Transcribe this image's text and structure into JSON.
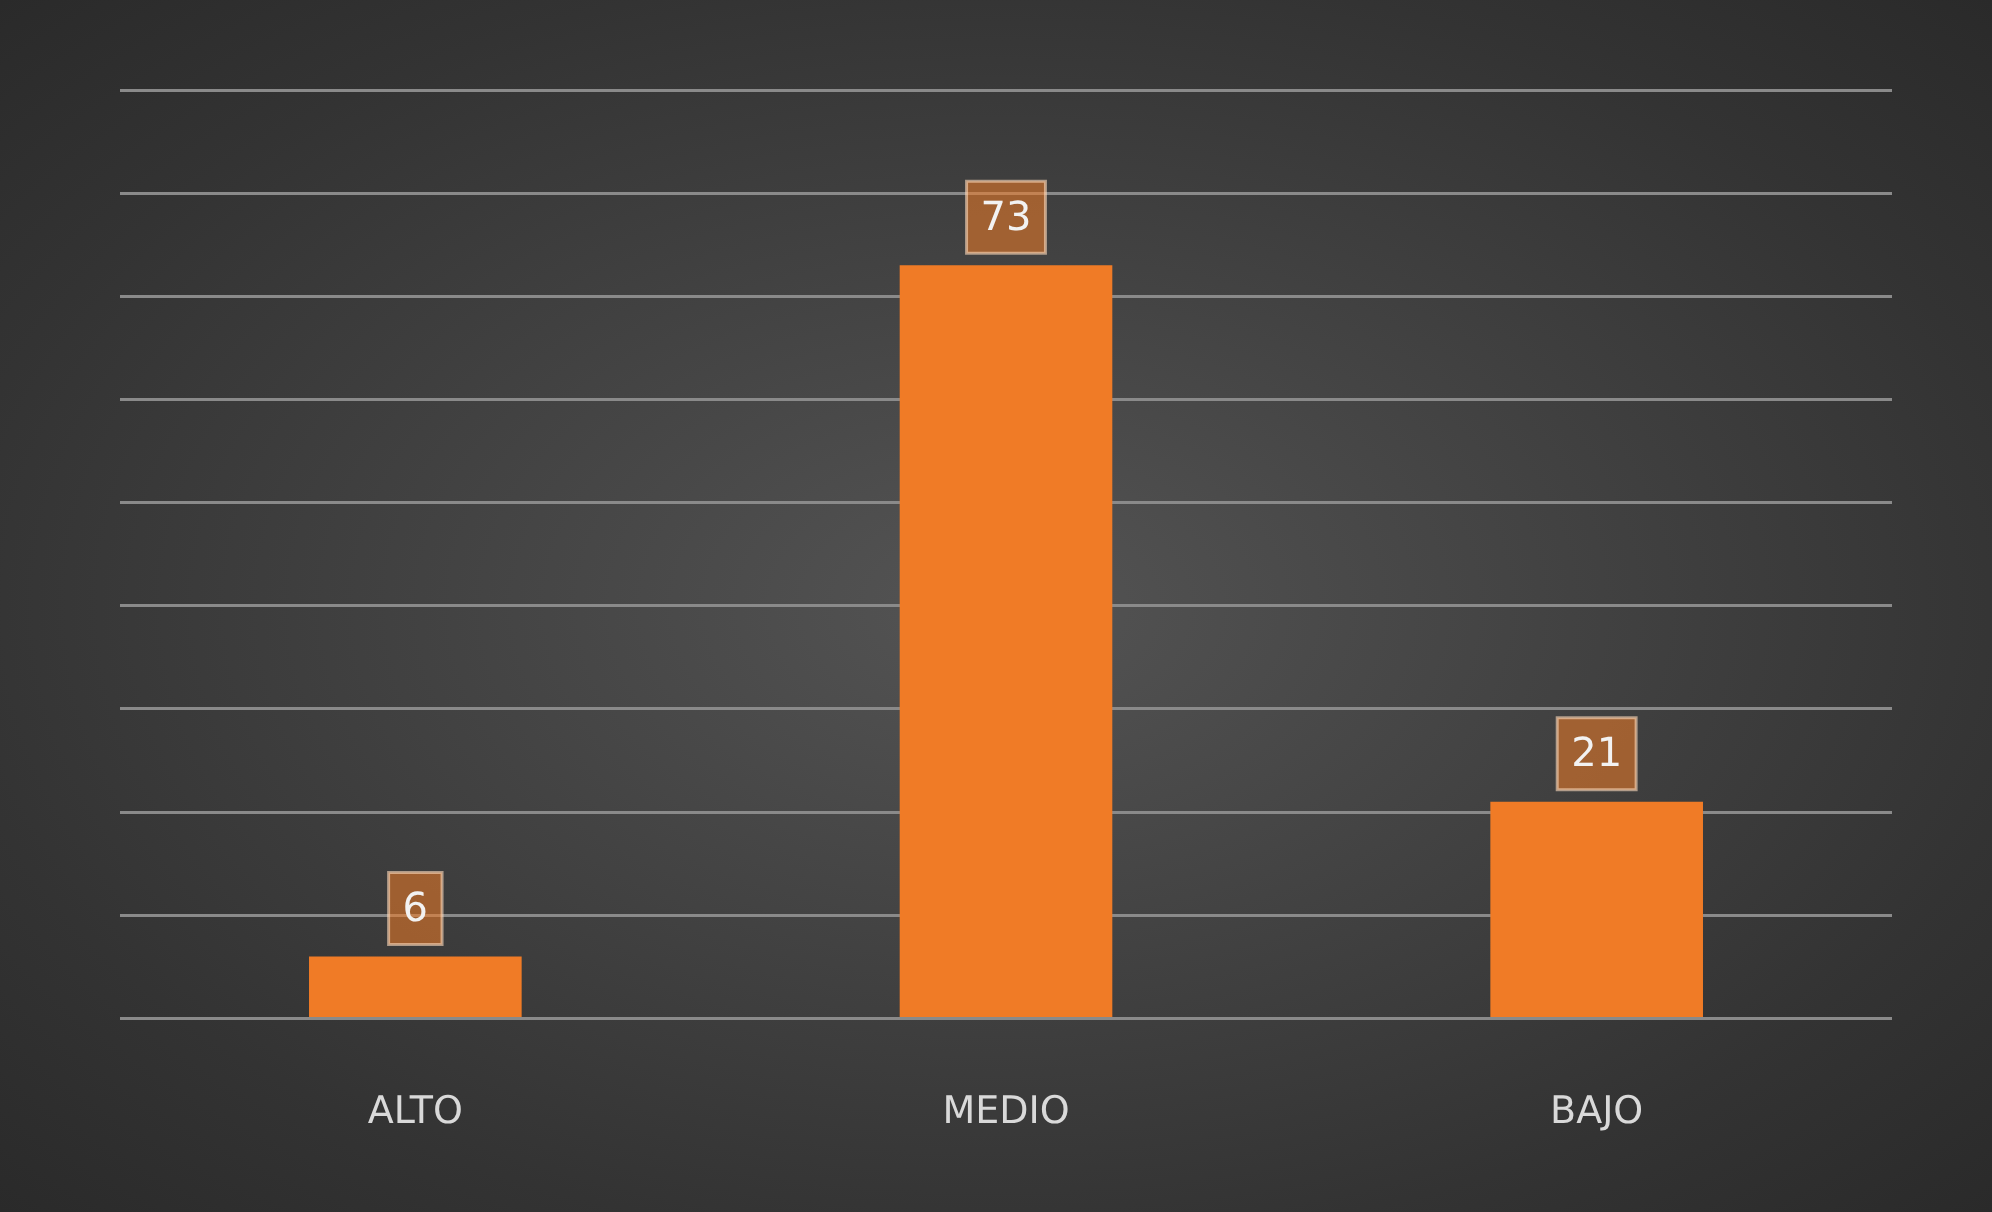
{
  "chart_data": {
    "type": "bar",
    "categories": [
      "ALTO",
      "MEDIO",
      "BAJO"
    ],
    "values": [
      6,
      73,
      21
    ],
    "color": "#f07b26",
    "ylim": [
      0,
      90
    ],
    "yticks": [
      {
        "value": 0,
        "label": null
      },
      {
        "value": 10,
        "label": null
      },
      {
        "value": 20,
        "label": null
      },
      {
        "value": 30,
        "label": null
      },
      {
        "value": 40,
        "label": null
      },
      {
        "value": 50,
        "label": null
      },
      {
        "value": 60,
        "label": null
      },
      {
        "value": 70,
        "label": null
      },
      {
        "value": 80,
        "label": null
      },
      {
        "value": 90,
        "label": null
      }
    ],
    "grid": "y",
    "tick_labels": "x",
    "data_labels": true,
    "legend": false
  }
}
